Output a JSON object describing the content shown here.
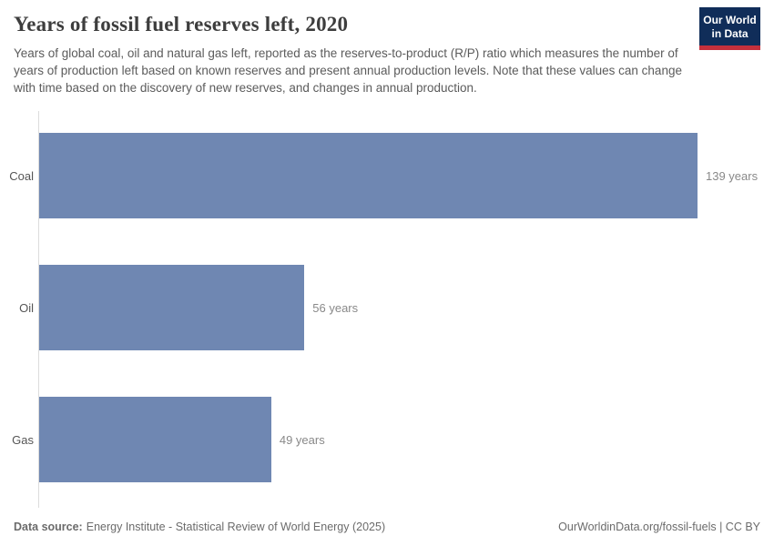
{
  "header": {
    "title": "Years of fossil fuel reserves left, 2020",
    "subtitle": "Years of global coal, oil and natural gas left, reported as the reserves-to-product (R/P) ratio which measures the number of years of production left based on known reserves and present annual production levels. Note that these values can change with time based on the discovery of new reserves, and changes in annual production.",
    "logo": {
      "line1": "Our World",
      "line2": "in Data"
    }
  },
  "chart_data": {
    "type": "bar",
    "orientation": "horizontal",
    "title": "Years of fossil fuel reserves left, 2020",
    "categories": [
      "Coal",
      "Oil",
      "Gas"
    ],
    "values": [
      139,
      56,
      49
    ],
    "value_labels": [
      "139 years",
      "56 years",
      "49 years"
    ],
    "unit": "years",
    "xlim": [
      0,
      139
    ],
    "grid": false,
    "legend": "none",
    "xlabel": "",
    "ylabel": ""
  },
  "footer": {
    "source_label": "Data source:",
    "source_text": "Energy Institute - Statistical Review of World Energy (2025)",
    "right_text": "OurWorldinData.org/fossil-fuels | CC BY"
  },
  "colors": {
    "bar": "#6f87b2",
    "logo_bg": "#102d59",
    "logo_stripe": "#c5303c",
    "title_text": "#3d3d3d",
    "subtitle_text": "#5b5b5b",
    "value_text": "#898989"
  }
}
